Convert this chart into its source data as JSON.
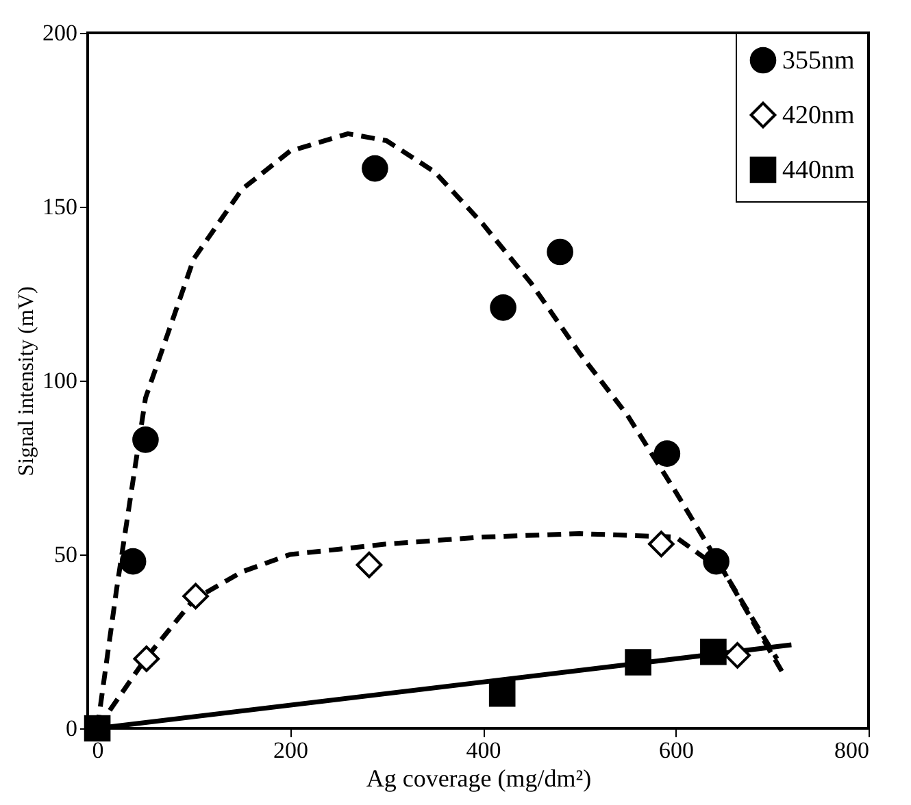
{
  "chart_data": {
    "type": "scatter",
    "xlabel": "Ag coverage (mg/dm²)",
    "ylabel": "Signal intensity  (mV)",
    "xlim": [
      -10,
      800
    ],
    "ylim": [
      0,
      200
    ],
    "xticks": [
      0,
      200,
      400,
      600,
      800
    ],
    "yticks": [
      0,
      50,
      100,
      150,
      200
    ],
    "grid": false,
    "legend": "top right",
    "series": [
      {
        "name": "355nm",
        "type": "scatter",
        "marker": "circle",
        "color": "#000000",
        "x": [
          37,
          50,
          288,
          421,
          480,
          591,
          642
        ],
        "values": [
          48,
          83,
          161,
          121,
          137,
          79,
          48
        ]
      },
      {
        "name": "420nm",
        "type": "scatter",
        "marker": "diamond",
        "color": "#000000",
        "x": [
          51,
          102,
          282,
          585,
          664
        ],
        "values": [
          20,
          38,
          47,
          53,
          21
        ]
      },
      {
        "name": "440nm",
        "type": "scatter",
        "marker": "square",
        "color": "#000000",
        "x": [
          0,
          420,
          561,
          639
        ],
        "values": [
          0,
          10,
          19,
          22
        ]
      },
      {
        "type": "line",
        "line_style": "dashed",
        "color": "#000000",
        "x": [
          0,
          20,
          50,
          100,
          150,
          200,
          260,
          300,
          350,
          400,
          450,
          500,
          550,
          600,
          650,
          713
        ],
        "values": [
          0,
          40,
          95,
          135,
          155,
          166,
          171,
          169,
          160,
          145,
          128,
          108,
          90,
          68,
          45,
          15
        ]
      },
      {
        "type": "line",
        "line_style": "dashed",
        "color": "#000000",
        "x": [
          0,
          50,
          100,
          150,
          200,
          300,
          400,
          500,
          600,
          650,
          705
        ],
        "values": [
          0,
          20,
          37,
          45,
          50,
          53,
          55,
          56,
          55,
          45,
          20
        ]
      },
      {
        "type": "line",
        "line_style": "solid",
        "color": "#000000",
        "x": [
          0,
          720
        ],
        "values": [
          0,
          24
        ]
      }
    ]
  }
}
